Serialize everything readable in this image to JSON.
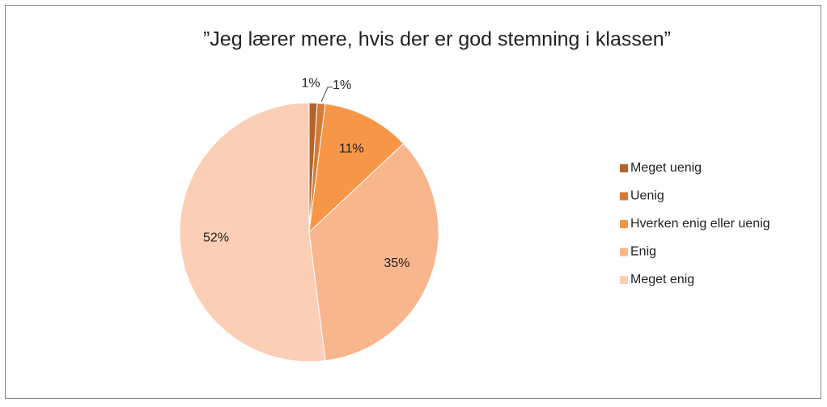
{
  "chart_data": {
    "type": "pie",
    "title": "”Jeg lærer mere, hvis der er god stemning i klassen”",
    "categories": [
      "Meget uenig",
      "Uenig",
      "Hverken enig eller uenig",
      "Enig",
      "Meget enig"
    ],
    "values": [
      1,
      1,
      11,
      35,
      52
    ],
    "value_labels": [
      "1%",
      "1%",
      "11%",
      "35%",
      "52%"
    ],
    "colors": [
      "#b4642a",
      "#d67b36",
      "#f79646",
      "#f9b58c",
      "#fbcfb5"
    ],
    "legend": "right"
  }
}
